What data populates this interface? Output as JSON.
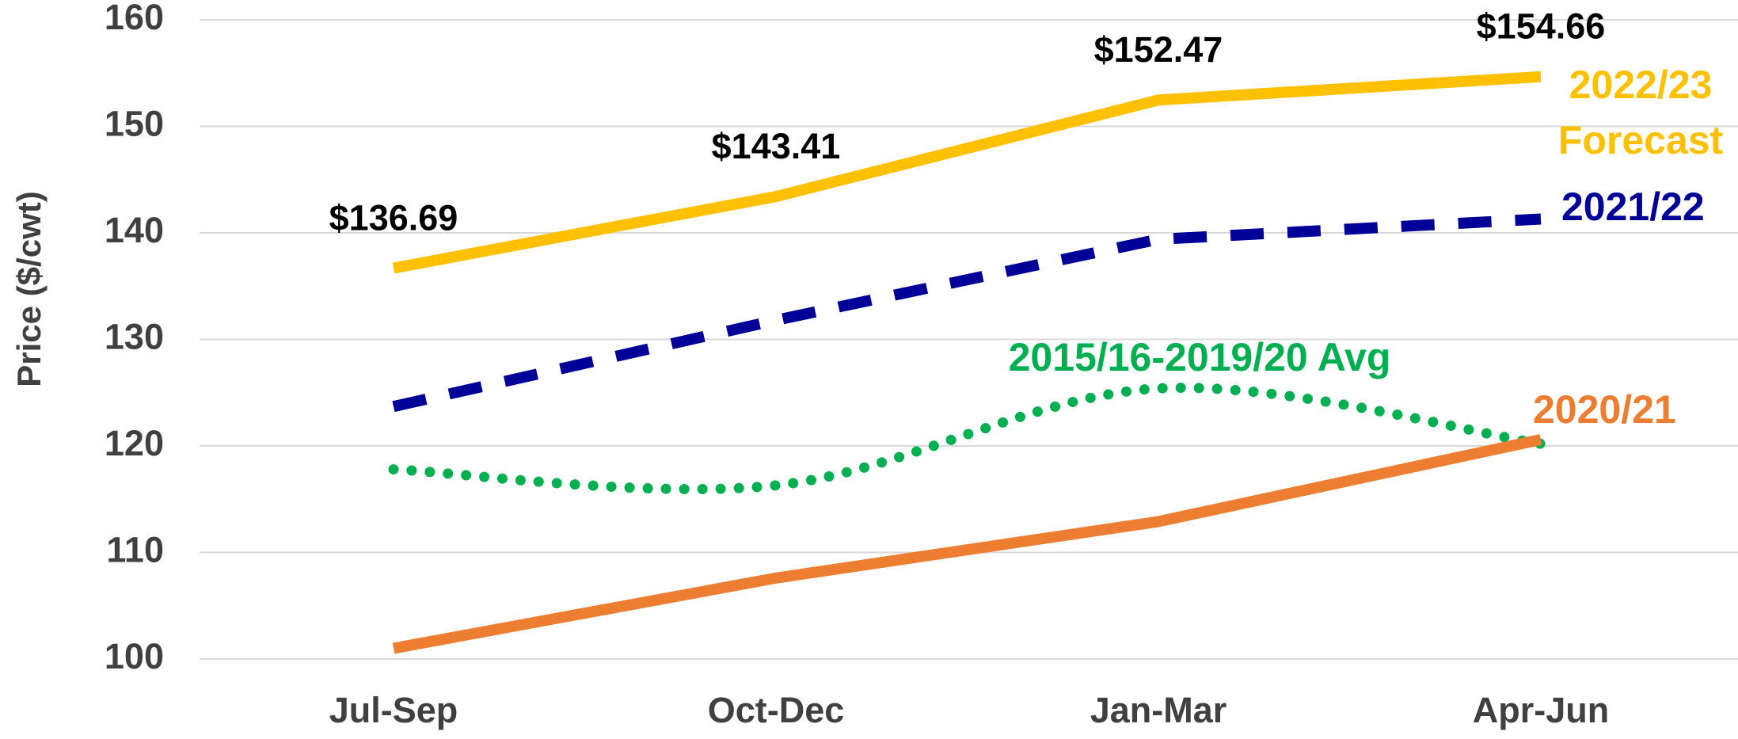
{
  "chart_data": {
    "type": "line",
    "y_label": "Price ($/cwt)",
    "categories": [
      "Jul-Sep",
      "Oct-Dec",
      "Jan-Mar",
      "Apr-Jun"
    ],
    "series": [
      {
        "name": "2022/23 Forecast",
        "color": "#FFC000",
        "style": "solid",
        "values": [
          136.69,
          143.41,
          152.47,
          154.66
        ],
        "value_labels": [
          "$136.69",
          "$143.41",
          "$152.47",
          "$154.66"
        ]
      },
      {
        "name": "2021/22",
        "color": "#000099",
        "style": "dashed",
        "values": [
          123.7,
          131.8,
          139.4,
          141.3
        ]
      },
      {
        "name": "2015/16-2019/20 Avg",
        "color": "#00B050",
        "style": "dotted",
        "smooth": true,
        "values": [
          117.8,
          116.3,
          125.4,
          120.2
        ]
      },
      {
        "name": "2020/21",
        "color": "#ED7D31",
        "style": "solid",
        "values": [
          101.0,
          107.6,
          112.9,
          120.6
        ]
      }
    ],
    "ylim": [
      100,
      160
    ],
    "yticks": [
      100,
      110,
      120,
      130,
      140,
      150,
      160
    ],
    "grid": true
  }
}
